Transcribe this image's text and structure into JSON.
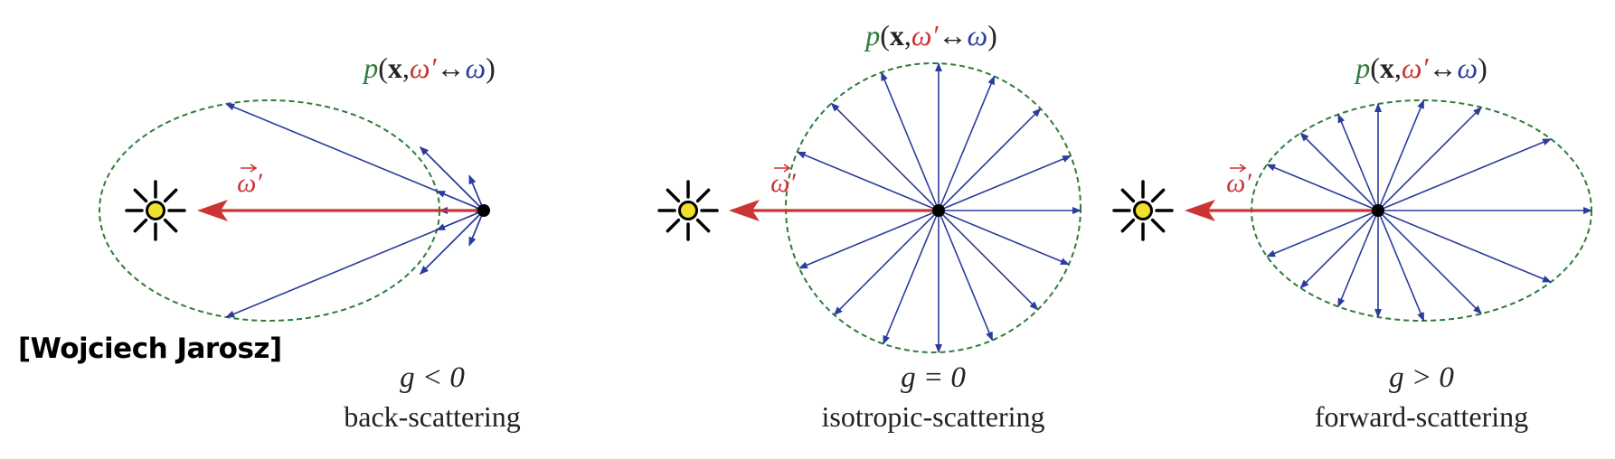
{
  "credit": "[Wojciech Jarosz]",
  "colors": {
    "phase_function": "#2e7d3a",
    "incoming": "#cc3333",
    "scatter": "#2b3c9c",
    "light_core": "#f2e030",
    "point": "#000000"
  },
  "formula": {
    "p": "p",
    "paren_open": "(",
    "x": "x",
    "comma": ",",
    "omega_prime": "ω′",
    "arrow": "↔",
    "omega": "ω",
    "paren_close": ")"
  },
  "incoming_label": "ω′",
  "panels": [
    {
      "id": "back",
      "condition": "g < 0",
      "name": "back-scattering"
    },
    {
      "id": "iso",
      "condition": "g = 0",
      "name": "isotropic-scattering"
    },
    {
      "id": "forward",
      "condition": "g > 0",
      "name": "forward-scattering"
    }
  ],
  "icons": {
    "light": "light-source-icon",
    "arrow": "arrowhead-icon"
  }
}
